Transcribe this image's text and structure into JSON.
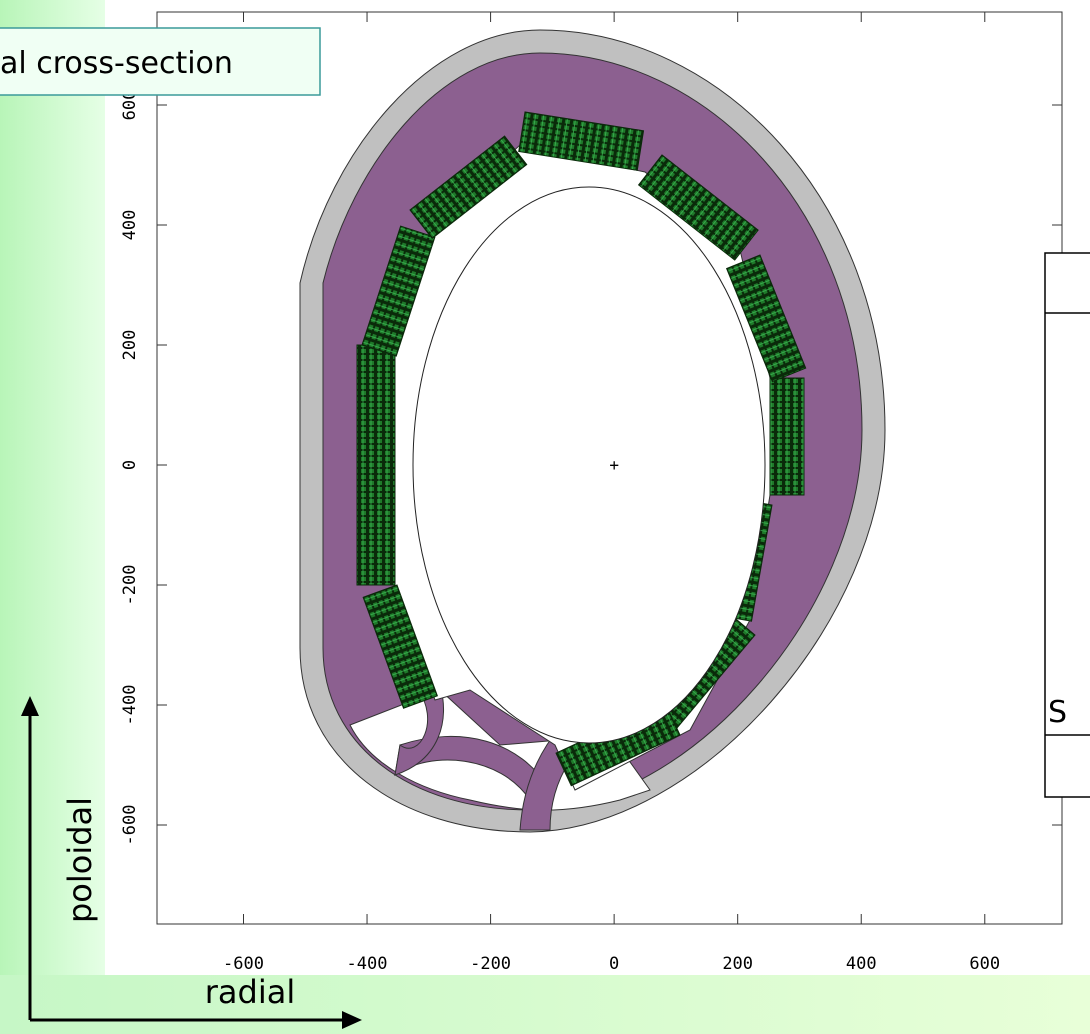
{
  "title_box": "al cross-section",
  "plot": {
    "xlim": [
      -740,
      725
    ],
    "ylim": [
      -765,
      755
    ],
    "xticks": [
      -600,
      -400,
      -200,
      0,
      200,
      400,
      600
    ],
    "yticks": [
      -600,
      -400,
      -200,
      0,
      200,
      400,
      600
    ],
    "center_marker": "+"
  },
  "axis_arrows": {
    "vertical": "poloidal",
    "horizontal": "radial"
  },
  "side_table": {
    "cell": "S"
  }
}
